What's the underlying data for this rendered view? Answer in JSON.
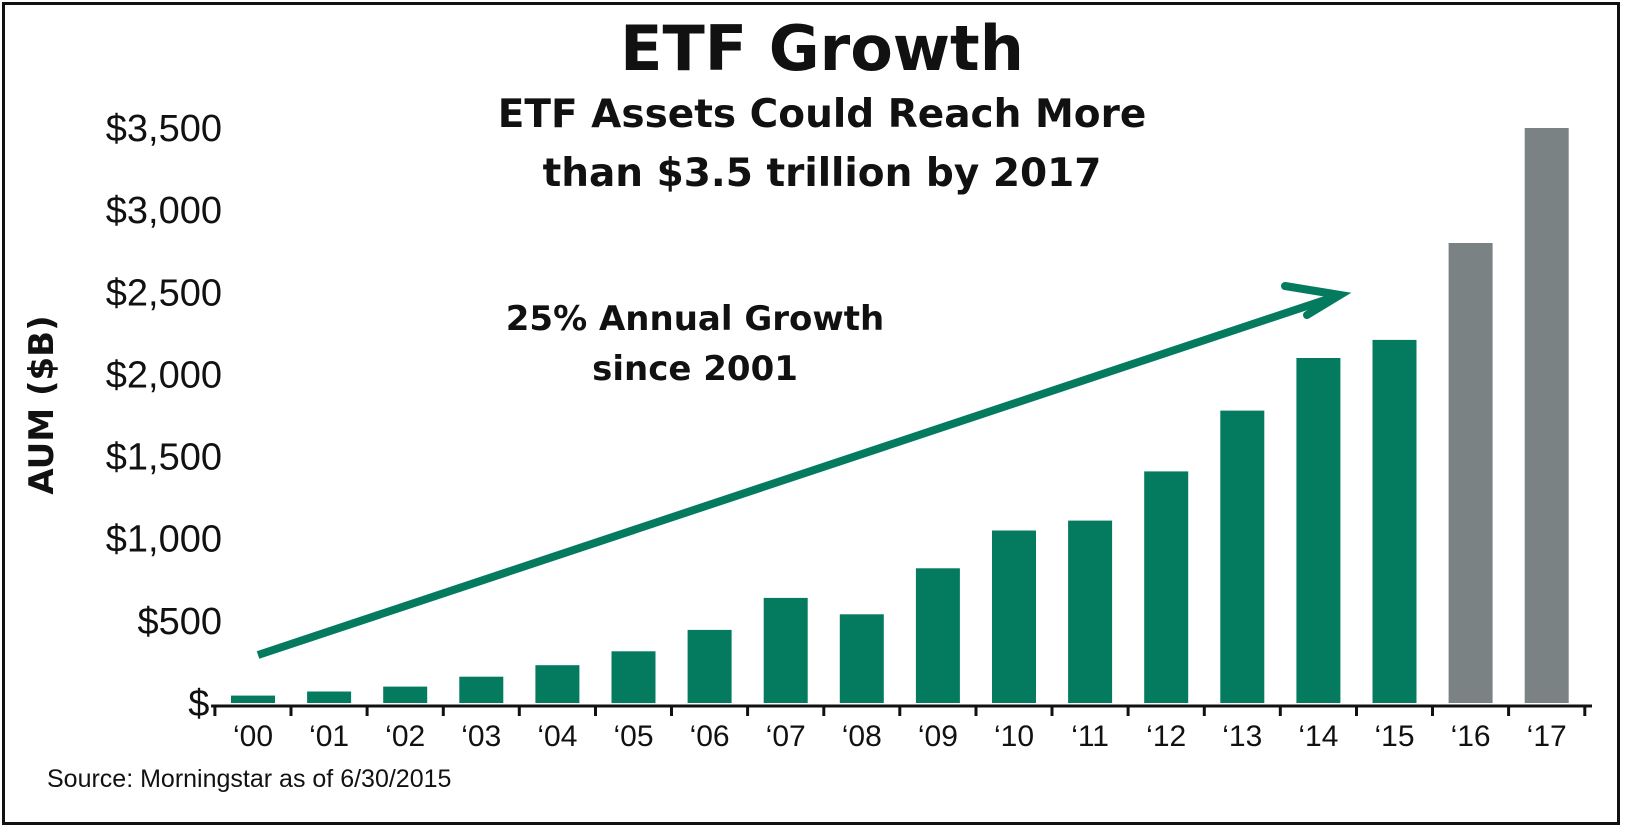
{
  "chart_data": {
    "type": "bar",
    "title": "ETF Growth",
    "subtitle_lines": [
      "ETF Assets Could Reach More",
      "than $3.5 trillion by 2017"
    ],
    "ylabel": "AUM ($B)",
    "ylim": [
      0,
      3500
    ],
    "yticks": [
      0,
      500,
      1000,
      1500,
      2000,
      2500,
      3000,
      3500
    ],
    "ytick_labels": [
      "$-",
      "$500",
      "$1,000",
      "$1,500",
      "$2,000",
      "$2,500",
      "$3,000",
      "$3,500"
    ],
    "categories": [
      "‘00",
      "‘01",
      "‘02",
      "‘03",
      "‘04",
      "‘05",
      "‘06",
      "‘07",
      "‘08",
      "‘09",
      "‘10",
      "‘11",
      "‘12",
      "‘13",
      "‘14",
      "‘15",
      "‘16",
      "‘17"
    ],
    "values": [
      45,
      70,
      100,
      160,
      230,
      315,
      445,
      640,
      540,
      820,
      1050,
      1110,
      1410,
      1780,
      2100,
      2210,
      2800,
      3500
    ],
    "bar_colors": [
      "#047b5f",
      "#047b5f",
      "#047b5f",
      "#047b5f",
      "#047b5f",
      "#047b5f",
      "#047b5f",
      "#047b5f",
      "#047b5f",
      "#047b5f",
      "#047b5f",
      "#047b5f",
      "#047b5f",
      "#047b5f",
      "#047b5f",
      "#047b5f",
      "#7a8284",
      "#7a8284"
    ],
    "grid": false,
    "annotation": {
      "lines": [
        "25% Annual Growth",
        "since 2001"
      ],
      "arrow_color": "#047b5f"
    },
    "source": "Source: Morningstar as of 6/30/2015"
  },
  "colors": {
    "actual": "#047b5f",
    "projected": "#7a8284",
    "text": "#111111"
  }
}
